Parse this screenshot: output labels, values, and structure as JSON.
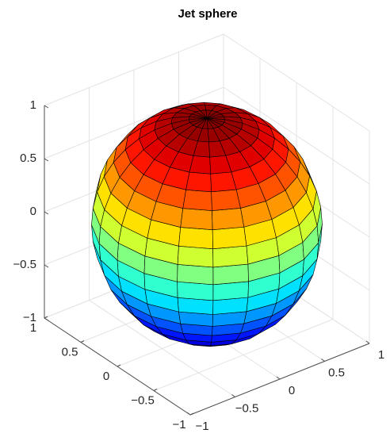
{
  "chart_data": {
    "type": "surface",
    "shape": "sphere",
    "faces": 20,
    "colormap": "jet",
    "title": "Jet sphere",
    "xlim": [
      -1,
      1
    ],
    "ylim": [
      -1,
      1
    ],
    "zlim": [
      -1,
      1
    ],
    "xticks": [
      {
        "value": -1,
        "label": "−1"
      },
      {
        "value": -0.5,
        "label": "−0.5"
      },
      0,
      0.5,
      1
    ],
    "yticks": [
      {
        "value": -1,
        "label": "−1"
      },
      {
        "value": -0.5,
        "label": "−0.5"
      },
      0,
      0.5,
      1
    ],
    "zticks": [
      {
        "value": -1,
        "label": "−1"
      },
      {
        "value": -0.5,
        "label": "−0.5"
      },
      0,
      0.5,
      1
    ],
    "grid": true
  }
}
